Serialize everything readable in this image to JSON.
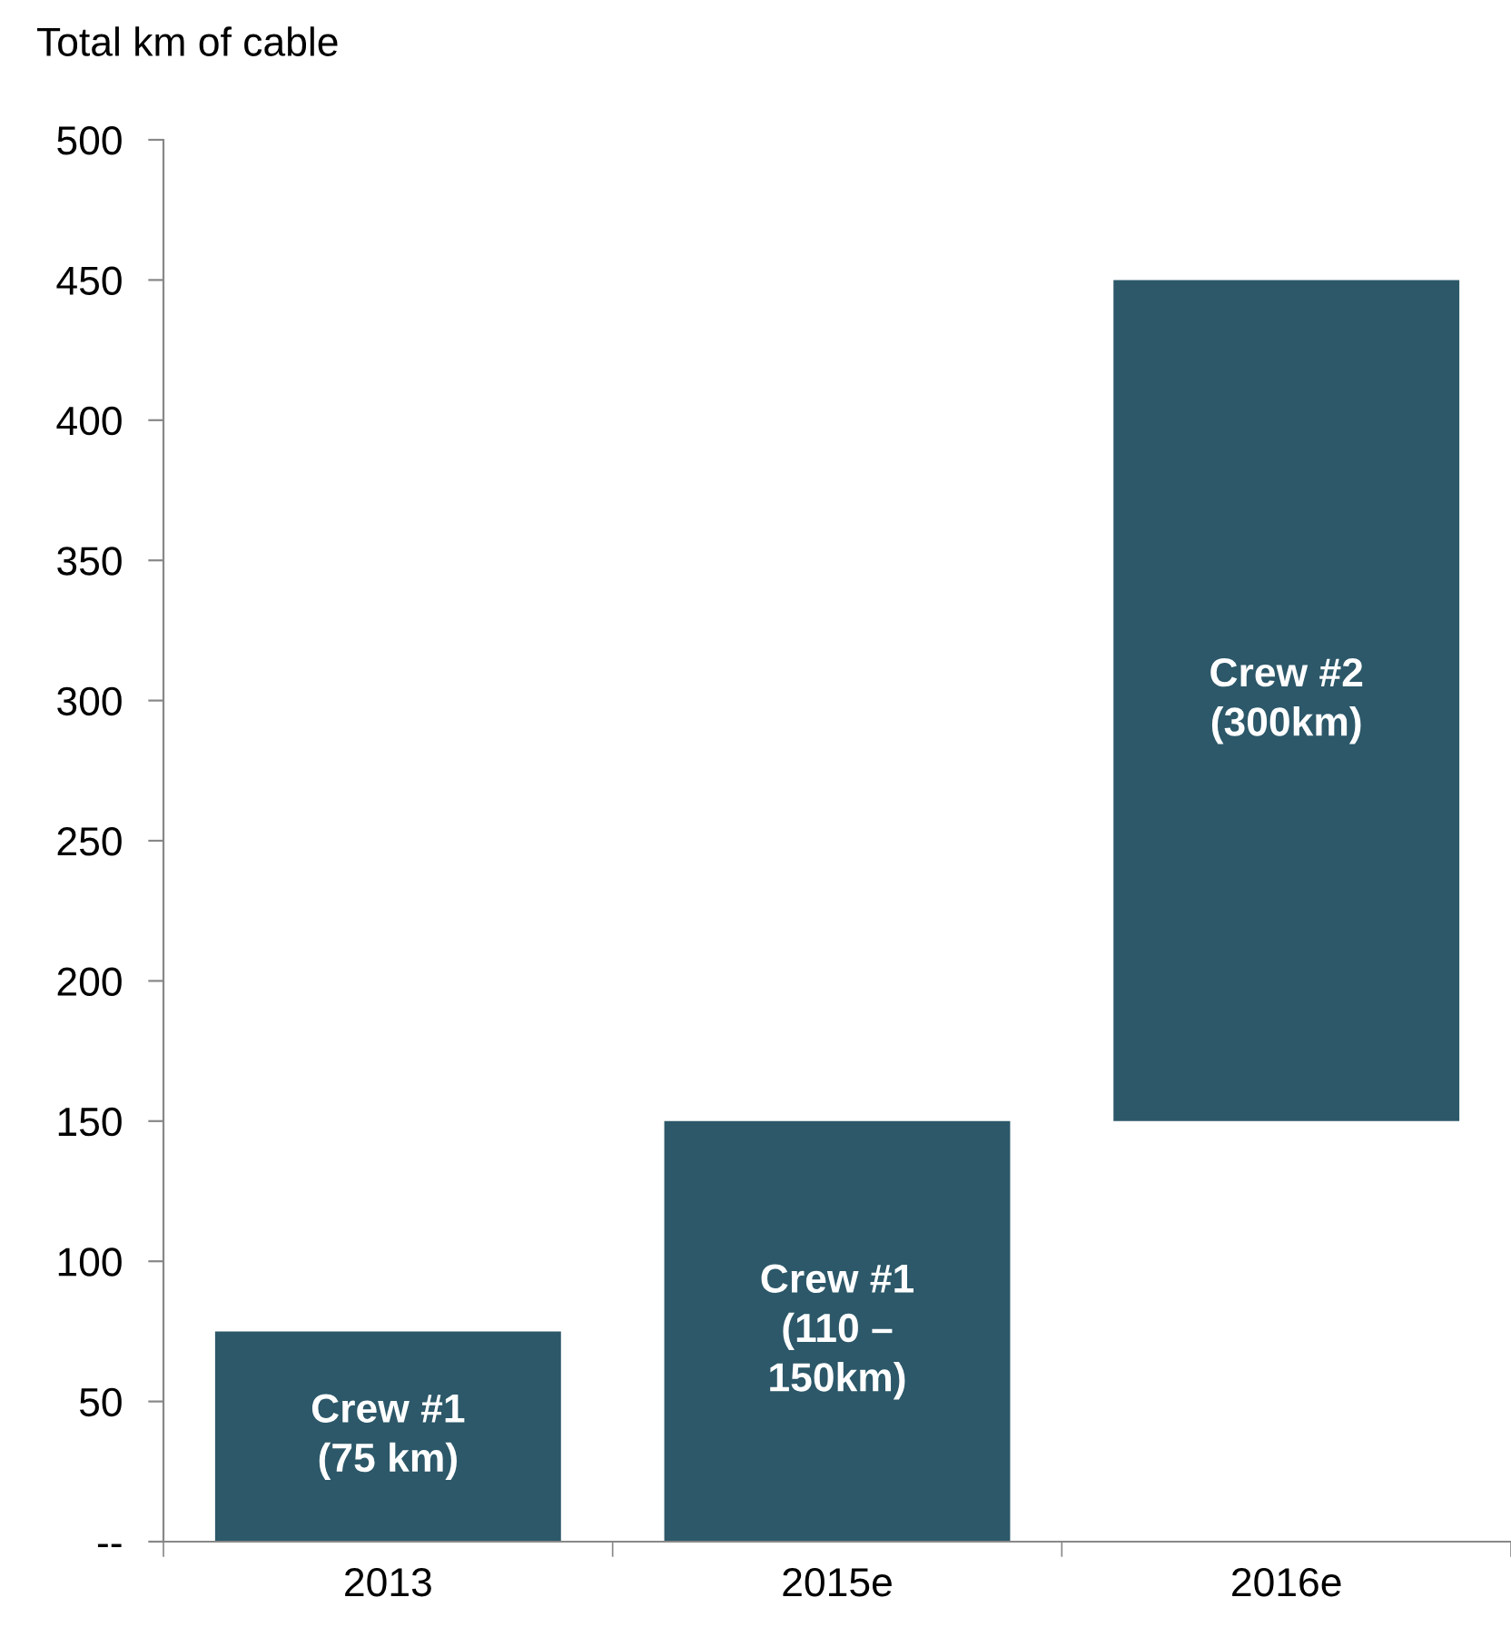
{
  "chart_data": {
    "type": "bar",
    "ylabel": "Total km of cable",
    "categories": [
      "2013",
      "2015e",
      "2016e"
    ],
    "values": [
      75,
      150,
      300
    ],
    "base": [
      0,
      0,
      150
    ],
    "color": "#2c5869",
    "value_labels": [
      "Crew #1\n(75 km)",
      "Crew #1\n(110 –\n150km)",
      "Crew #2\n(300km)"
    ],
    "ylim": [
      0,
      500
    ],
    "yticks": [
      {
        "value": 0,
        "label": "--"
      },
      50,
      100,
      150,
      200,
      250,
      300,
      350,
      400,
      450,
      500
    ],
    "grid": false,
    "legend": false
  }
}
